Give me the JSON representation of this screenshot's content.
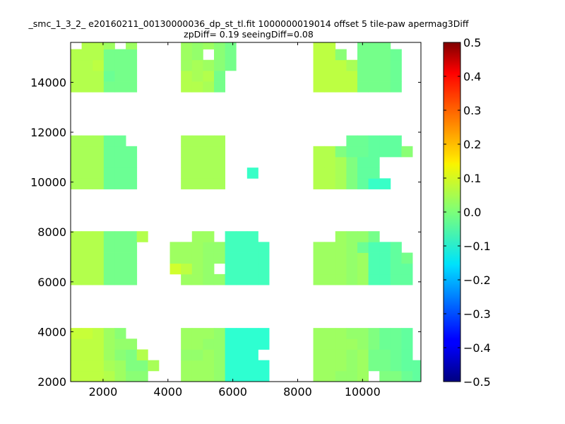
{
  "chart_data": {
    "type": "heatmap",
    "title_line1": "_smc_1_3_2_ e20160211_00130000036_dp_st_tl.fit 1000000019014 offset 5 tile-paw apermag3Diff",
    "title_line2": "zpDiff= 0.19 seeingDiff=0.08",
    "xlabel": "",
    "ylabel": "",
    "xlim": [
      1000,
      11800
    ],
    "ylim": [
      2000,
      15600
    ],
    "x_ticks": [
      2000,
      4000,
      6000,
      8000,
      10000
    ],
    "y_ticks": [
      2000,
      4000,
      6000,
      8000,
      10000,
      12000,
      14000
    ],
    "colorbar": {
      "range": [
        -0.5,
        0.5
      ],
      "ticks": [
        -0.5,
        -0.4,
        -0.3,
        -0.2,
        -0.1,
        0.0,
        0.1,
        0.2,
        0.3,
        0.4,
        0.5
      ],
      "colormap": "jet"
    },
    "grid": false,
    "cell_size": [
      340,
      430
    ],
    "x0": 1000,
    "row_y0": [
      2000,
      2430,
      2860,
      3290,
      3720,
      5880,
      6310,
      6740,
      7170,
      7600,
      9720,
      10150,
      10580,
      11010,
      11440,
      13610,
      14040,
      14470,
      14900,
      15330
    ],
    "rows": [
      [
        0.06,
        0.06,
        0.06,
        0.05,
        0.03,
        0.01,
        0.01,
        null,
        null,
        null,
        0.03,
        0.03,
        0.03,
        0.02,
        -0.08,
        -0.08,
        -0.08,
        -0.08,
        null,
        null,
        null,
        null,
        0.03,
        0.03,
        0.02,
        0.02,
        0.03,
        null,
        0.0,
        0.0,
        -0.02,
        -0.03,
        null,
        -0.03,
        -0.02,
        0.02,
        null,
        -0.03,
        -0.03,
        null,
        null,
        null,
        null
      ],
      [
        0.06,
        0.06,
        0.06,
        0.04,
        0.03,
        0.0,
        0.0,
        0.04,
        null,
        null,
        0.03,
        0.03,
        0.03,
        0.02,
        -0.08,
        -0.08,
        -0.08,
        -0.08,
        null,
        null,
        null,
        null,
        0.03,
        0.03,
        0.03,
        0.02,
        0.03,
        -0.01,
        -0.01,
        -0.02,
        -0.03,
        -0.03,
        0.02,
        0.02,
        0.02,
        0.0,
        0.02,
        -0.03,
        -0.03,
        null,
        null,
        null,
        null
      ],
      [
        0.06,
        0.06,
        0.06,
        0.03,
        0.01,
        0.0,
        0.05,
        null,
        null,
        null,
        0.02,
        0.02,
        0.03,
        0.02,
        -0.08,
        -0.08,
        -0.08,
        null,
        null,
        null,
        null,
        null,
        0.03,
        0.03,
        0.03,
        0.02,
        0.03,
        -0.01,
        -0.01,
        -0.02,
        -0.03,
        null,
        null,
        0.0,
        0.02,
        0.03,
        0.03,
        0.0,
        -0.02,
        null,
        null,
        null,
        null
      ],
      [
        0.06,
        0.06,
        0.06,
        0.03,
        0.02,
        0.02,
        null,
        null,
        null,
        null,
        0.03,
        0.03,
        0.02,
        0.02,
        -0.08,
        -0.08,
        -0.08,
        -0.08,
        null,
        null,
        null,
        null,
        0.03,
        0.03,
        0.03,
        0.03,
        0.02,
        0.0,
        -0.02,
        -0.02,
        -0.03,
        null,
        null,
        0.02,
        0.02,
        0.03,
        0.02,
        -0.03,
        null,
        -0.03,
        null,
        null,
        null
      ],
      [
        0.07,
        0.07,
        0.06,
        0.03,
        0.01,
        null,
        null,
        null,
        null,
        null,
        0.03,
        0.03,
        0.03,
        0.02,
        -0.08,
        -0.08,
        -0.08,
        -0.08,
        null,
        null,
        null,
        null,
        0.03,
        0.03,
        0.03,
        0.02,
        0.02,
        0.0,
        -0.02,
        -0.02,
        -0.03,
        null,
        null,
        0.02,
        0.02,
        0.03,
        0.02,
        0.0,
        -0.03,
        -0.03,
        null,
        null,
        null
      ],
      [
        0.05,
        0.05,
        0.05,
        -0.01,
        -0.01,
        -0.01,
        null,
        null,
        null,
        null,
        0.03,
        0.03,
        0.02,
        0.02,
        -0.06,
        -0.06,
        -0.06,
        -0.06,
        null,
        null,
        null,
        null,
        0.03,
        0.03,
        0.03,
        0.02,
        0.03,
        -0.05,
        -0.05,
        -0.03,
        -0.03,
        null,
        null,
        0.01,
        0.01,
        0.01,
        0.01,
        -0.02,
        null,
        null,
        null,
        null,
        null
      ],
      [
        0.05,
        0.05,
        0.05,
        -0.01,
        -0.01,
        -0.01,
        null,
        null,
        null,
        0.08,
        0.06,
        0.03,
        0.02,
        null,
        -0.06,
        -0.06,
        -0.06,
        -0.06,
        null,
        null,
        null,
        null,
        0.03,
        0.03,
        0.03,
        0.02,
        0.03,
        -0.05,
        -0.05,
        -0.03,
        -0.03,
        null,
        null,
        0.01,
        0.01,
        0.01,
        0.01,
        -0.02,
        -0.02,
        null,
        null,
        null,
        null
      ],
      [
        0.05,
        0.05,
        0.05,
        -0.01,
        -0.01,
        -0.01,
        null,
        null,
        null,
        0.03,
        0.03,
        0.03,
        0.02,
        0.02,
        -0.06,
        -0.06,
        -0.06,
        -0.06,
        null,
        null,
        null,
        null,
        0.03,
        0.03,
        0.03,
        0.02,
        0.03,
        -0.05,
        -0.05,
        -0.03,
        -0.01,
        null,
        null,
        0.01,
        0.01,
        0.01,
        0.01,
        -0.02,
        -0.02,
        null,
        null,
        null,
        null
      ],
      [
        0.05,
        0.05,
        0.05,
        -0.01,
        -0.01,
        -0.01,
        null,
        null,
        null,
        0.03,
        0.03,
        0.03,
        0.02,
        0.02,
        -0.06,
        -0.06,
        -0.06,
        -0.06,
        null,
        null,
        null,
        null,
        0.03,
        0.03,
        0.03,
        0.02,
        -0.02,
        -0.05,
        -0.05,
        -0.03,
        null,
        null,
        null,
        0.01,
        0.01,
        0.01,
        0.01,
        -0.02,
        -0.02,
        null,
        null,
        null,
        null
      ],
      [
        0.05,
        0.05,
        0.05,
        -0.01,
        -0.01,
        -0.01,
        0.05,
        null,
        null,
        null,
        null,
        0.03,
        0.03,
        null,
        -0.06,
        -0.06,
        -0.06,
        null,
        null,
        null,
        null,
        null,
        null,
        null,
        0.03,
        0.02,
        0.02,
        -0.01,
        null,
        null,
        null,
        null,
        null,
        0.01,
        0.01,
        0.01,
        0.01,
        -0.02,
        -0.02,
        null,
        null,
        null,
        null
      ],
      [
        0.04,
        0.04,
        0.04,
        -0.02,
        -0.02,
        -0.02,
        null,
        null,
        null,
        null,
        0.04,
        0.04,
        0.04,
        0.04,
        null,
        null,
        null,
        null,
        null,
        null,
        null,
        null,
        0.05,
        0.05,
        0.04,
        0.0,
        -0.03,
        -0.07,
        -0.07,
        null,
        null,
        null,
        null,
        null,
        0.01,
        0.01,
        0.01,
        -0.07,
        -0.02,
        -0.02,
        null,
        null,
        null
      ],
      [
        0.04,
        0.04,
        0.04,
        -0.02,
        -0.02,
        -0.02,
        null,
        null,
        null,
        null,
        0.04,
        0.04,
        0.04,
        0.04,
        null,
        null,
        -0.07,
        null,
        null,
        null,
        null,
        null,
        0.05,
        0.05,
        0.04,
        0.0,
        -0.03,
        -0.03,
        null,
        null,
        null,
        null,
        null,
        null,
        null,
        0.0,
        0.01,
        -0.02,
        -0.02,
        -0.02,
        null,
        null,
        null
      ],
      [
        0.04,
        0.04,
        0.04,
        -0.02,
        -0.02,
        -0.02,
        null,
        null,
        null,
        null,
        0.04,
        0.04,
        0.04,
        0.04,
        null,
        null,
        null,
        null,
        null,
        null,
        null,
        null,
        0.05,
        0.05,
        0.04,
        0.0,
        -0.03,
        -0.03,
        null,
        null,
        null,
        null,
        null,
        null,
        null,
        0.03,
        0.02,
        -0.02,
        -0.02,
        -0.02,
        null,
        null,
        null
      ],
      [
        0.04,
        0.04,
        0.04,
        -0.02,
        -0.02,
        -0.02,
        null,
        null,
        null,
        null,
        0.04,
        0.04,
        0.04,
        0.04,
        null,
        null,
        null,
        null,
        null,
        null,
        null,
        null,
        0.05,
        0.05,
        0.0,
        -0.02,
        -0.02,
        -0.03,
        -0.03,
        -0.03,
        0.01,
        null,
        null,
        null,
        0.03,
        0.01,
        0.02,
        -0.02,
        -0.02,
        -0.02,
        null,
        null,
        null
      ],
      [
        0.04,
        0.04,
        0.04,
        -0.02,
        -0.02,
        null,
        null,
        null,
        null,
        null,
        0.04,
        0.04,
        0.04,
        0.04,
        null,
        null,
        null,
        null,
        null,
        null,
        null,
        null,
        null,
        null,
        null,
        -0.02,
        -0.02,
        -0.03,
        -0.03,
        -0.03,
        null,
        null,
        null,
        null,
        0.03,
        0.01,
        0.02,
        -0.02,
        -0.02,
        -0.02,
        null,
        null,
        null
      ],
      [
        0.05,
        0.05,
        0.05,
        -0.01,
        -0.01,
        -0.01,
        null,
        null,
        null,
        null,
        0.05,
        0.05,
        0.04,
        -0.01,
        null,
        null,
        null,
        null,
        null,
        null,
        null,
        null,
        0.06,
        0.06,
        0.06,
        0.06,
        -0.01,
        -0.01,
        -0.01,
        -0.02,
        null,
        null,
        null,
        null,
        0.04,
        0.04,
        0.04,
        0.04,
        null,
        -0.01,
        null,
        null,
        null
      ],
      [
        0.05,
        0.05,
        0.05,
        -0.02,
        -0.01,
        -0.01,
        null,
        null,
        null,
        null,
        0.05,
        0.04,
        0.05,
        -0.01,
        null,
        null,
        null,
        null,
        null,
        null,
        null,
        null,
        0.06,
        0.06,
        0.06,
        0.06,
        -0.01,
        -0.01,
        -0.01,
        -0.02,
        null,
        null,
        null,
        null,
        0.04,
        0.04,
        0.04,
        0.04,
        null,
        -0.01,
        null,
        null,
        null
      ],
      [
        0.05,
        0.05,
        0.06,
        -0.01,
        -0.01,
        -0.01,
        null,
        null,
        null,
        null,
        0.03,
        0.04,
        0.03,
        0.01,
        -0.01,
        null,
        null,
        null,
        null,
        null,
        null,
        null,
        0.06,
        0.06,
        0.06,
        0.04,
        -0.01,
        -0.01,
        -0.01,
        -0.02,
        null,
        null,
        null,
        0.04,
        0.04,
        0.04,
        null,
        null,
        null,
        -0.01,
        null,
        null,
        null
      ],
      [
        0.05,
        0.05,
        0.05,
        -0.01,
        -0.01,
        -0.01,
        null,
        null,
        null,
        null,
        0.03,
        0.02,
        null,
        0.01,
        -0.01,
        null,
        null,
        null,
        null,
        null,
        null,
        null,
        0.06,
        0.06,
        0.01,
        null,
        -0.01,
        -0.01,
        -0.01,
        -0.02,
        null,
        null,
        null,
        null,
        null,
        null,
        null,
        null,
        null,
        -0.01,
        null,
        null,
        null
      ],
      [
        null,
        0.05,
        0.05,
        0.03,
        null,
        0.03,
        null,
        null,
        null,
        null,
        0.03,
        0.02,
        0.03,
        0.01,
        -0.01,
        null,
        null,
        null,
        null,
        null,
        null,
        null,
        0.06,
        0.06,
        null,
        null,
        -0.01,
        -0.01,
        -0.01,
        null,
        null,
        null,
        null,
        null,
        null,
        0.03,
        null,
        null,
        null,
        0.02,
        null,
        null,
        null
      ]
    ]
  }
}
